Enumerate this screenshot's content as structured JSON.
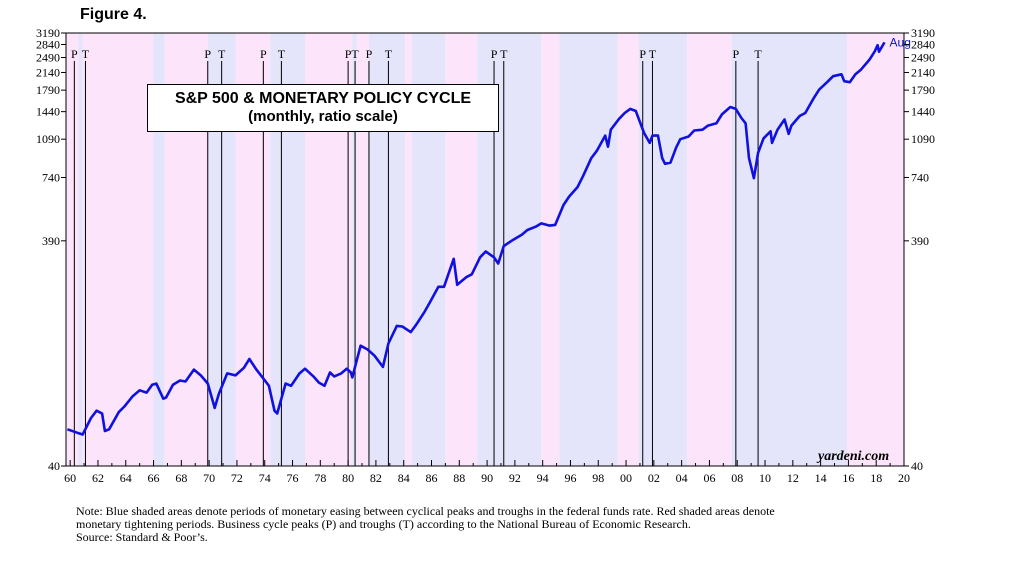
{
  "figure_label": "Figure 4.",
  "note_lines": [
    "Note: Blue shaded areas denote periods of monetary easing between cyclical peaks and troughs in the federal funds rate. Red shaded areas denote",
    "monetary tightening periods. Business cycle peaks (P) and troughs (T) according to the National Bureau of Economic Research.",
    "Source: Standard & Poor’s."
  ],
  "source_credit": "yardeni.com",
  "colors": {
    "line": "#1010e0",
    "easing": "#e4e4fb",
    "tightening": "#fce4fb",
    "axis": "#000000",
    "last_label": "#1010e0"
  },
  "chart_data": {
    "type": "line",
    "title": "S&P 500 & MONETARY POLICY CYCLE",
    "subtitle": "(monthly, ratio scale)",
    "scale": "log",
    "ylim": [
      40,
      3190
    ],
    "xlim": [
      1959.7,
      2020
    ],
    "y_ticks": [
      40,
      390,
      740,
      1090,
      1440,
      1790,
      2140,
      2490,
      2840,
      3190
    ],
    "x_ticks": [
      "60",
      "62",
      "64",
      "66",
      "68",
      "70",
      "72",
      "74",
      "76",
      "78",
      "80",
      "82",
      "84",
      "86",
      "88",
      "90",
      "92",
      "94",
      "96",
      "98",
      "00",
      "02",
      "04",
      "06",
      "08",
      "10",
      "12",
      "14",
      "16",
      "18",
      "20"
    ],
    "x_tick_years": [
      1960,
      1962,
      1964,
      1966,
      1968,
      1970,
      1972,
      1974,
      1976,
      1978,
      1980,
      1982,
      1984,
      1986,
      1988,
      1990,
      1992,
      1994,
      1996,
      1998,
      2000,
      2002,
      2004,
      2006,
      2008,
      2010,
      2012,
      2014,
      2016,
      2018,
      2020
    ],
    "last_point_label": "Aug",
    "series": [
      {
        "values": [
          [
            1959.8,
            58
          ],
          [
            1960.5,
            56
          ],
          [
            1960.9,
            55
          ],
          [
            1961.5,
            65
          ],
          [
            1961.9,
            70
          ],
          [
            1962.3,
            68
          ],
          [
            1962.5,
            57
          ],
          [
            1962.8,
            58
          ],
          [
            1963.5,
            69
          ],
          [
            1963.9,
            73
          ],
          [
            1964.5,
            81
          ],
          [
            1965.0,
            86
          ],
          [
            1965.5,
            84
          ],
          [
            1965.9,
            91
          ],
          [
            1966.2,
            92
          ],
          [
            1966.7,
            79
          ],
          [
            1966.9,
            80
          ],
          [
            1967.4,
            91
          ],
          [
            1967.9,
            95
          ],
          [
            1968.3,
            94
          ],
          [
            1968.9,
            106
          ],
          [
            1969.4,
            100
          ],
          [
            1969.9,
            92
          ],
          [
            1970.4,
            72
          ],
          [
            1970.7,
            83
          ],
          [
            1971.3,
            102
          ],
          [
            1971.9,
            100
          ],
          [
            1972.5,
            108
          ],
          [
            1972.9,
            118
          ],
          [
            1973.4,
            106
          ],
          [
            1973.9,
            97
          ],
          [
            1974.3,
            90
          ],
          [
            1974.7,
            70
          ],
          [
            1974.9,
            68
          ],
          [
            1975.5,
            92
          ],
          [
            1975.9,
            90
          ],
          [
            1976.5,
            102
          ],
          [
            1976.9,
            107
          ],
          [
            1977.5,
            99
          ],
          [
            1977.9,
            93
          ],
          [
            1978.3,
            90
          ],
          [
            1978.7,
            103
          ],
          [
            1979.0,
            99
          ],
          [
            1979.5,
            102
          ],
          [
            1979.9,
            107
          ],
          [
            1980.2,
            103
          ],
          [
            1980.3,
            98
          ],
          [
            1980.9,
            135
          ],
          [
            1981.4,
            130
          ],
          [
            1981.9,
            122
          ],
          [
            1982.5,
            109
          ],
          [
            1982.9,
            138
          ],
          [
            1983.5,
            165
          ],
          [
            1983.9,
            164
          ],
          [
            1984.5,
            155
          ],
          [
            1984.9,
            167
          ],
          [
            1985.5,
            190
          ],
          [
            1985.9,
            210
          ],
          [
            1986.5,
            245
          ],
          [
            1986.9,
            245
          ],
          [
            1987.6,
            325
          ],
          [
            1987.85,
            250
          ],
          [
            1988.5,
            270
          ],
          [
            1988.9,
            278
          ],
          [
            1989.5,
            330
          ],
          [
            1989.9,
            350
          ],
          [
            1990.5,
            330
          ],
          [
            1990.8,
            310
          ],
          [
            1991.2,
            370
          ],
          [
            1991.9,
            395
          ],
          [
            1992.5,
            415
          ],
          [
            1992.9,
            435
          ],
          [
            1993.5,
            450
          ],
          [
            1993.9,
            465
          ],
          [
            1994.5,
            455
          ],
          [
            1994.9,
            458
          ],
          [
            1995.5,
            560
          ],
          [
            1995.9,
            610
          ],
          [
            1996.5,
            670
          ],
          [
            1996.9,
            750
          ],
          [
            1997.5,
            900
          ],
          [
            1997.9,
            970
          ],
          [
            1998.5,
            1130
          ],
          [
            1998.7,
            1010
          ],
          [
            1998.9,
            1200
          ],
          [
            1999.5,
            1340
          ],
          [
            1999.9,
            1420
          ],
          [
            2000.3,
            1480
          ],
          [
            2000.7,
            1450
          ],
          [
            2000.95,
            1320
          ],
          [
            2001.3,
            1160
          ],
          [
            2001.7,
            1050
          ],
          [
            2001.9,
            1130
          ],
          [
            2002.3,
            1130
          ],
          [
            2002.6,
            900
          ],
          [
            2002.8,
            850
          ],
          [
            2003.2,
            860
          ],
          [
            2003.6,
            1000
          ],
          [
            2003.9,
            1090
          ],
          [
            2004.5,
            1120
          ],
          [
            2004.9,
            1190
          ],
          [
            2005.5,
            1200
          ],
          [
            2005.9,
            1250
          ],
          [
            2006.5,
            1280
          ],
          [
            2006.9,
            1400
          ],
          [
            2007.5,
            1510
          ],
          [
            2007.9,
            1480
          ],
          [
            2008.3,
            1350
          ],
          [
            2008.6,
            1280
          ],
          [
            2008.85,
            900
          ],
          [
            2009.2,
            735
          ],
          [
            2009.5,
            950
          ],
          [
            2009.9,
            1100
          ],
          [
            2010.4,
            1180
          ],
          [
            2010.5,
            1050
          ],
          [
            2010.9,
            1200
          ],
          [
            2011.4,
            1330
          ],
          [
            2011.7,
            1150
          ],
          [
            2011.9,
            1250
          ],
          [
            2012.5,
            1380
          ],
          [
            2012.9,
            1420
          ],
          [
            2013.5,
            1650
          ],
          [
            2013.9,
            1800
          ],
          [
            2014.5,
            1950
          ],
          [
            2014.9,
            2060
          ],
          [
            2015.5,
            2100
          ],
          [
            2015.7,
            1960
          ],
          [
            2016.1,
            1940
          ],
          [
            2016.5,
            2100
          ],
          [
            2016.9,
            2200
          ],
          [
            2017.5,
            2430
          ],
          [
            2017.9,
            2650
          ],
          [
            2018.1,
            2820
          ],
          [
            2018.2,
            2640
          ],
          [
            2018.6,
            2901
          ]
        ]
      }
    ],
    "policy_periods": [
      {
        "type": "tightening",
        "start": 1959.7,
        "end": 1960.6
      },
      {
        "type": "easing",
        "start": 1960.6,
        "end": 1960.9
      },
      {
        "type": "tightening",
        "start": 1960.9,
        "end": 1966.0
      },
      {
        "type": "easing",
        "start": 1966.0,
        "end": 1966.8
      },
      {
        "type": "tightening",
        "start": 1966.8,
        "end": 1969.9
      },
      {
        "type": "easing",
        "start": 1969.9,
        "end": 1971.9
      },
      {
        "type": "tightening",
        "start": 1971.9,
        "end": 1974.4
      },
      {
        "type": "easing",
        "start": 1974.4,
        "end": 1976.9
      },
      {
        "type": "tightening",
        "start": 1976.9,
        "end": 1980.3
      },
      {
        "type": "easing",
        "start": 1980.3,
        "end": 1980.6
      },
      {
        "type": "tightening",
        "start": 1980.6,
        "end": 1981.5
      },
      {
        "type": "easing",
        "start": 1981.5,
        "end": 1984.1
      },
      {
        "type": "tightening",
        "start": 1984.1,
        "end": 1984.6
      },
      {
        "type": "easing",
        "start": 1984.6,
        "end": 1987.0
      },
      {
        "type": "tightening",
        "start": 1987.0,
        "end": 1989.3
      },
      {
        "type": "easing",
        "start": 1989.3,
        "end": 1993.9
      },
      {
        "type": "tightening",
        "start": 1993.9,
        "end": 1995.2
      },
      {
        "type": "easing",
        "start": 1995.2,
        "end": 1999.4
      },
      {
        "type": "tightening",
        "start": 1999.4,
        "end": 2000.9
      },
      {
        "type": "easing",
        "start": 2000.9,
        "end": 2004.4
      },
      {
        "type": "tightening",
        "start": 2004.4,
        "end": 2007.6
      },
      {
        "type": "easing",
        "start": 2007.6,
        "end": 2015.9
      },
      {
        "type": "tightening",
        "start": 2015.9,
        "end": 2020.0
      }
    ],
    "business_cycle_markers": [
      {
        "label": "P",
        "year": 1960.3
      },
      {
        "label": "T",
        "year": 1961.1
      },
      {
        "label": "P",
        "year": 1969.9
      },
      {
        "label": "T",
        "year": 1970.9
      },
      {
        "label": "P",
        "year": 1973.9
      },
      {
        "label": "T",
        "year": 1975.2
      },
      {
        "label": "P",
        "year": 1980.0
      },
      {
        "label": "T",
        "year": 1980.5
      },
      {
        "label": "P",
        "year": 1981.5
      },
      {
        "label": "T",
        "year": 1982.9
      },
      {
        "label": "P",
        "year": 1990.5
      },
      {
        "label": "T",
        "year": 1991.2
      },
      {
        "label": "P",
        "year": 2001.2
      },
      {
        "label": "T",
        "year": 2001.9
      },
      {
        "label": "P",
        "year": 2007.9
      },
      {
        "label": "T",
        "year": 2009.5
      }
    ]
  }
}
